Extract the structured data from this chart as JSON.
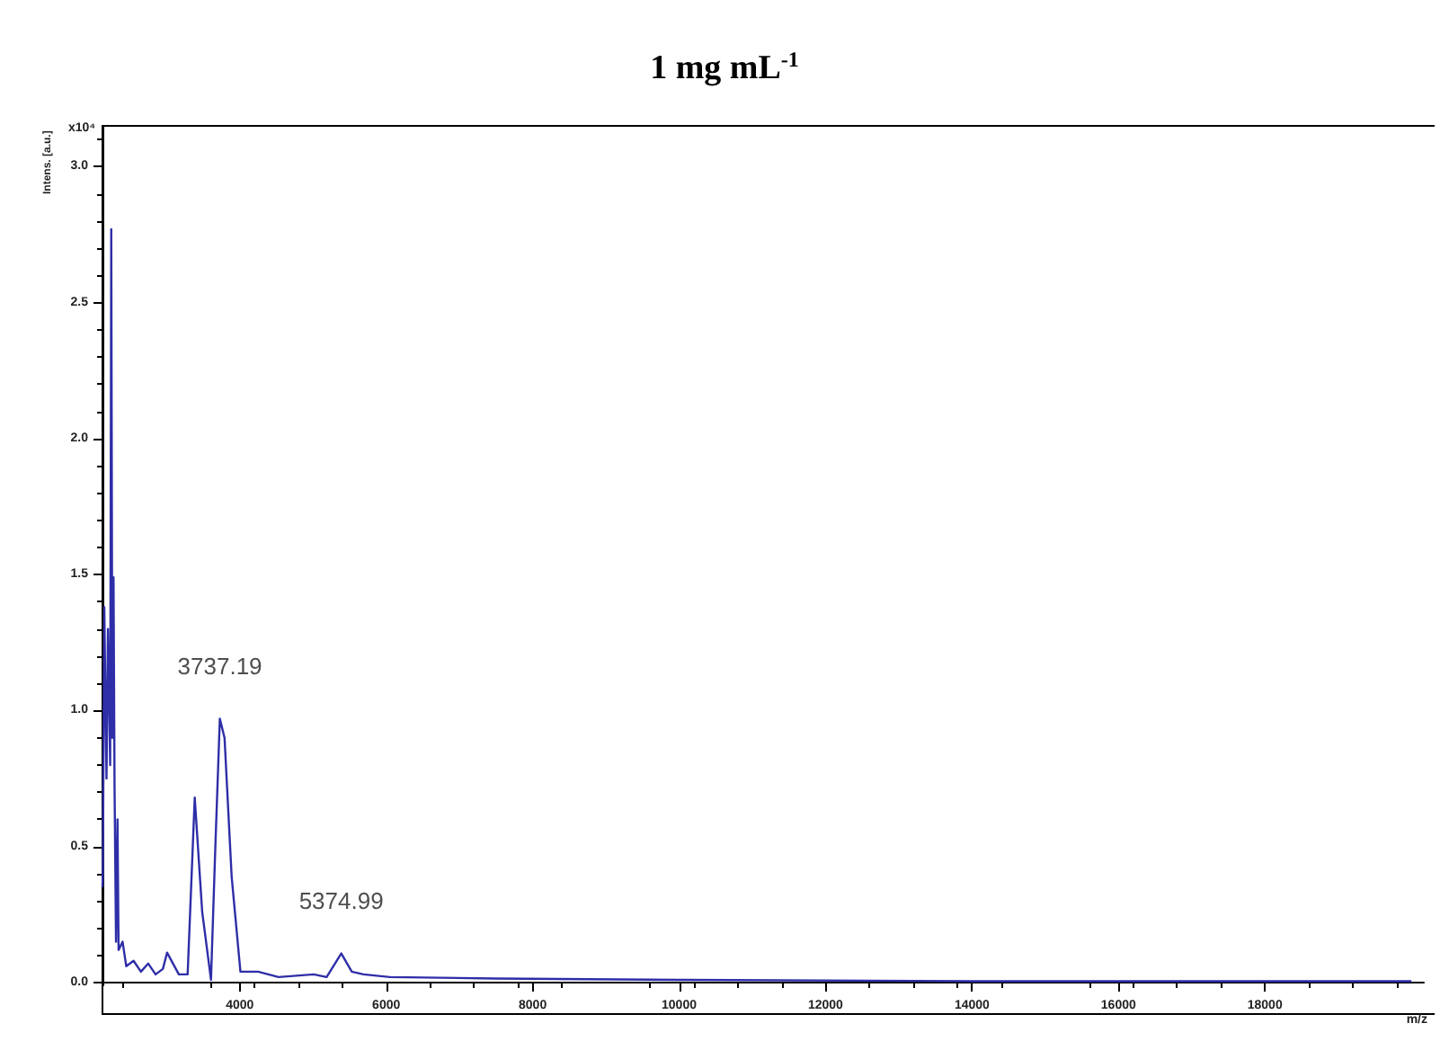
{
  "chart_data": {
    "type": "line",
    "title": "1 mg mL$^{-1}$",
    "xlabel": "m/z",
    "ylabel": "Intens. [a.u.]",
    "x": [
      2125,
      2130,
      2150,
      2180,
      2200,
      2230,
      2245,
      2260,
      2276,
      2290,
      2310,
      2330,
      2345,
      2400,
      2450,
      2550,
      2650,
      2750,
      2850,
      2950,
      3007,
      3168,
      3288,
      3385,
      3487,
      3607,
      3664,
      3728,
      3792,
      3889,
      4009,
      4250,
      4530,
      5010,
      5186,
      5386,
      5530,
      5690,
      6050,
      7490,
      10000,
      14000,
      20000
    ],
    "series": [
      {
        "color": "#2e2ea8",
        "values": [
          0.35,
          0.4,
          1.38,
          0.75,
          1.3,
          0.8,
          2.77,
          0.9,
          1.49,
          0.72,
          0.15,
          0.6,
          0.12,
          0.15,
          0.06,
          0.08,
          0.04,
          0.07,
          0.03,
          0.05,
          0.11,
          0.03,
          0.03,
          0.68,
          0.26,
          0.01,
          0.48,
          0.97,
          0.9,
          0.39,
          0.04,
          0.04,
          0.02,
          0.03,
          0.02,
          0.107,
          0.04,
          0.03,
          0.02,
          0.015,
          0.01,
          0.005,
          0.005
        ]
      }
    ],
    "xlim": [
      2125,
      20170
    ],
    "ylim": [
      -0.01,
      3.15
    ],
    "xticks": [
      4000,
      6000,
      8000,
      10000,
      12000,
      14000,
      16000,
      18000
    ],
    "yticks": [
      {
        "value": 0,
        "label": "0.0"
      },
      {
        "value": 0.5,
        "label": "0.5"
      },
      {
        "value": 1,
        "label": "1.0"
      },
      {
        "value": 1.5,
        "label": "1.5"
      },
      {
        "value": 2,
        "label": "2.0"
      },
      {
        "value": 2.5,
        "label": "2.5"
      },
      {
        "value": 3,
        "label": "3.0"
      }
    ],
    "annotations": [
      {
        "text": "3737.19",
        "x": 3728,
        "y": 0.97
      },
      {
        "text": "5374.99",
        "x": 5386,
        "y": 0.107
      },
      "x10⁴"
    ],
    "grid": false,
    "marker": "none",
    "line_style": "solid"
  }
}
